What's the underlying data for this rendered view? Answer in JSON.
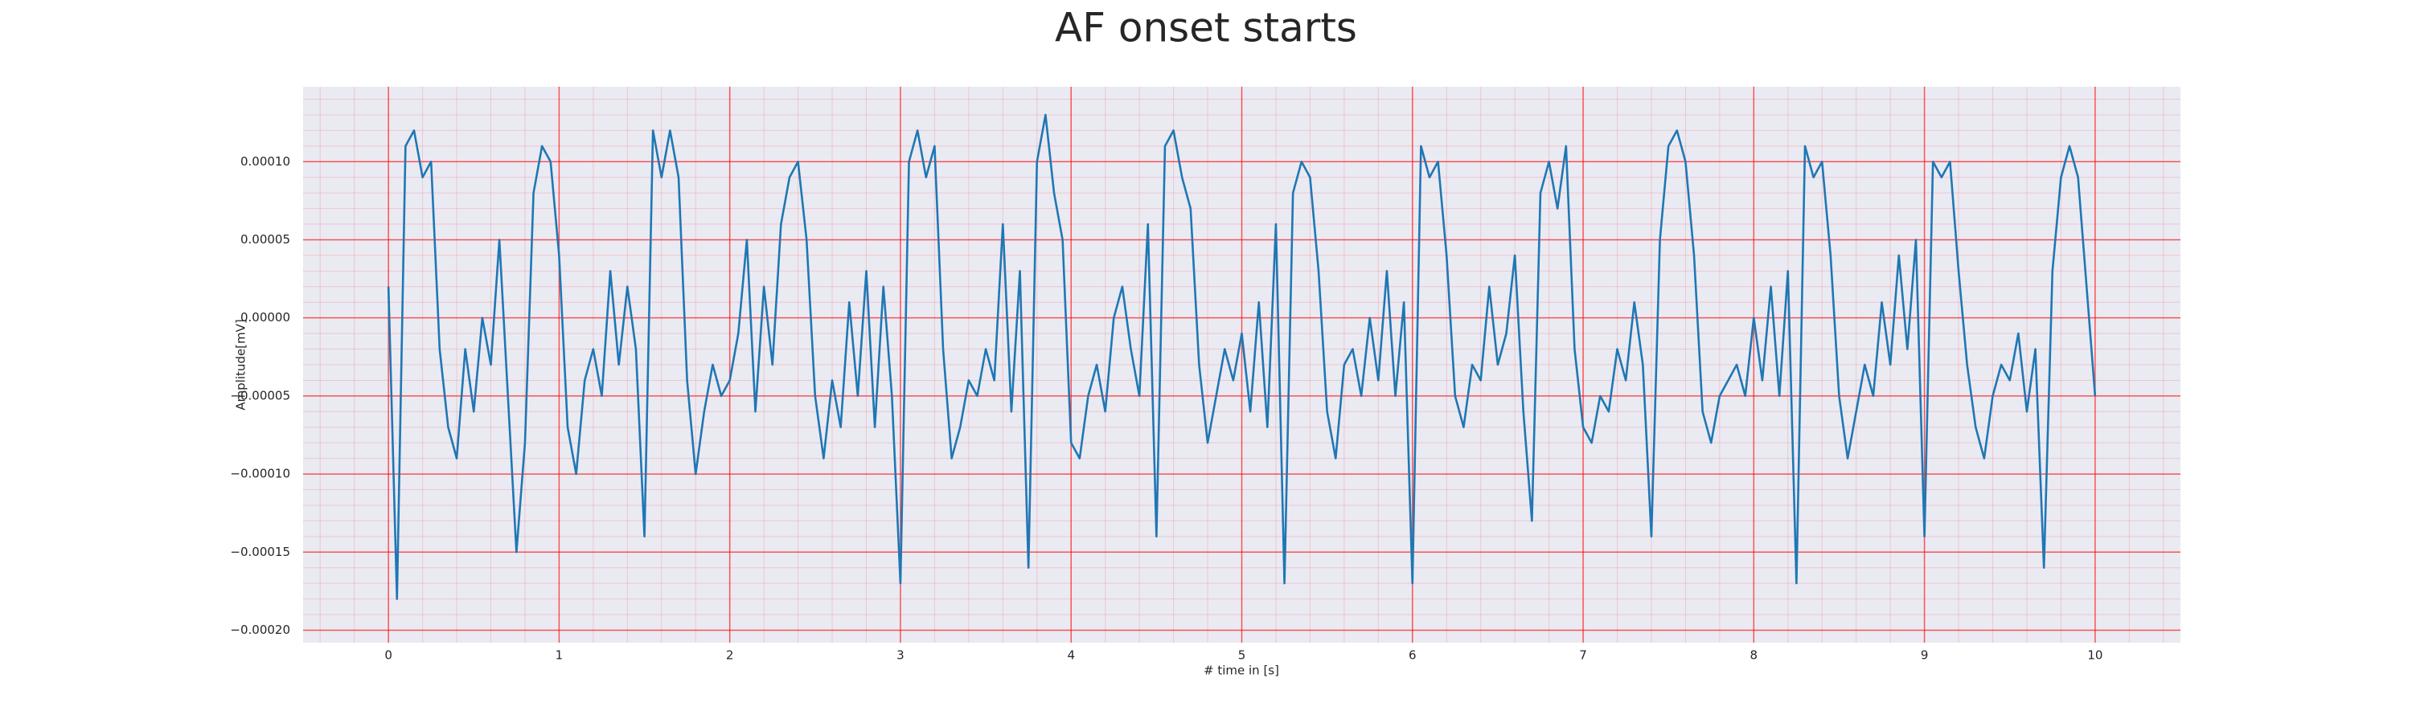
{
  "chart_data": {
    "type": "line",
    "title": "AF onset starts",
    "xlabel": "# time in [s]",
    "ylabel": "Amplitude[mV]",
    "color": "#1f77b4",
    "background": "#eaeaf2",
    "grid_color": "#ff0000",
    "grid": true,
    "minor_grid": true,
    "xlim": [
      -0.5,
      10.5
    ],
    "ylim": [
      -0.000208,
      0.000148
    ],
    "xticks": [
      0,
      1,
      2,
      3,
      4,
      5,
      6,
      7,
      8,
      9,
      10
    ],
    "yticks": [
      {
        "value": -0.0002,
        "label": "−0.00020"
      },
      {
        "value": -0.00015,
        "label": "−0.00015"
      },
      {
        "value": -0.0001,
        "label": "−0.00010"
      },
      {
        "value": -5e-05,
        "label": "−0.00005"
      },
      {
        "value": 0,
        "label": "0.00000"
      },
      {
        "value": 5e-05,
        "label": "0.00005"
      },
      {
        "value": 0.0001,
        "label": "0.00010"
      }
    ],
    "x": [
      0,
      0.05,
      0.1,
      0.15,
      0.2,
      0.25,
      0.3,
      0.35,
      0.4,
      0.45,
      0.5,
      0.55,
      0.6,
      0.65,
      0.7,
      0.75,
      0.8,
      0.85,
      0.9,
      0.95,
      1,
      1.05,
      1.1,
      1.15,
      1.2,
      1.25,
      1.3,
      1.35,
      1.4,
      1.45,
      1.5,
      1.55,
      1.6,
      1.65,
      1.7,
      1.75,
      1.8,
      1.85,
      1.9,
      1.95,
      2,
      2.05,
      2.1,
      2.15,
      2.2,
      2.25,
      2.3,
      2.35,
      2.4,
      2.45,
      2.5,
      2.55,
      2.6,
      2.65,
      2.7,
      2.75,
      2.8,
      2.85,
      2.9,
      2.95,
      3,
      3.05,
      3.1,
      3.15,
      3.2,
      3.25,
      3.3,
      3.35,
      3.4,
      3.45,
      3.5,
      3.55,
      3.6,
      3.65,
      3.7,
      3.75,
      3.8,
      3.85,
      3.9,
      3.95,
      4,
      4.05,
      4.1,
      4.15,
      4.2,
      4.25,
      4.3,
      4.35,
      4.4,
      4.45,
      4.5,
      4.55,
      4.6,
      4.65,
      4.7,
      4.75,
      4.8,
      4.85,
      4.9,
      4.95,
      5,
      5.05,
      5.1,
      5.15,
      5.2,
      5.25,
      5.3,
      5.35,
      5.4,
      5.45,
      5.5,
      5.55,
      5.6,
      5.65,
      5.7,
      5.75,
      5.8,
      5.85,
      5.9,
      5.95,
      6,
      6.05,
      6.1,
      6.15,
      6.2,
      6.25,
      6.3,
      6.35,
      6.4,
      6.45,
      6.5,
      6.55,
      6.6,
      6.65,
      6.7,
      6.75,
      6.8,
      6.85,
      6.9,
      6.95,
      7,
      7.05,
      7.1,
      7.15,
      7.2,
      7.25,
      7.3,
      7.35,
      7.4,
      7.45,
      7.5,
      7.55,
      7.6,
      7.65,
      7.7,
      7.75,
      7.8,
      7.85,
      7.9,
      7.95,
      8,
      8.05,
      8.1,
      8.15,
      8.2,
      8.25,
      8.3,
      8.35,
      8.4,
      8.45,
      8.5,
      8.55,
      8.6,
      8.65,
      8.7,
      8.75,
      8.8,
      8.85,
      8.9,
      8.95,
      9,
      9.05,
      9.1,
      9.15,
      9.2,
      9.25,
      9.3,
      9.35,
      9.4,
      9.45,
      9.5,
      9.55,
      9.6,
      9.65,
      9.7,
      9.75,
      9.8,
      9.85,
      9.9,
      9.95,
      10
    ],
    "values": [
      2e-05,
      -0.00018,
      0.00011,
      0.00012,
      9e-05,
      0.0001,
      -2e-05,
      -7e-05,
      -9e-05,
      -2e-05,
      -6e-05,
      0,
      -3e-05,
      5e-05,
      -5e-05,
      -0.00015,
      -8e-05,
      8e-05,
      0.00011,
      0.0001,
      4e-05,
      -7e-05,
      -0.0001,
      -4e-05,
      -2e-05,
      -5e-05,
      3e-05,
      -3e-05,
      2e-05,
      -2e-05,
      -0.00014,
      0.00012,
      9e-05,
      0.00012,
      9e-05,
      -4e-05,
      -0.0001,
      -6e-05,
      -3e-05,
      -5e-05,
      -4e-05,
      -1e-05,
      5e-05,
      -6e-05,
      2e-05,
      -3e-05,
      6e-05,
      9e-05,
      0.0001,
      5e-05,
      -5e-05,
      -9e-05,
      -4e-05,
      -7e-05,
      1e-05,
      -5e-05,
      3e-05,
      -7e-05,
      2e-05,
      -5e-05,
      -0.00017,
      0.0001,
      0.00012,
      9e-05,
      0.00011,
      -2e-05,
      -9e-05,
      -7e-05,
      -4e-05,
      -5e-05,
      -2e-05,
      -4e-05,
      6e-05,
      -6e-05,
      3e-05,
      -0.00016,
      0.0001,
      0.00013,
      8e-05,
      5e-05,
      -8e-05,
      -9e-05,
      -5e-05,
      -3e-05,
      -6e-05,
      0,
      2e-05,
      -2e-05,
      -5e-05,
      6e-05,
      -0.00014,
      0.00011,
      0.00012,
      9e-05,
      7e-05,
      -3e-05,
      -8e-05,
      -5e-05,
      -2e-05,
      -4e-05,
      -1e-05,
      -6e-05,
      1e-05,
      -7e-05,
      6e-05,
      -0.00017,
      8e-05,
      0.0001,
      9e-05,
      3e-05,
      -6e-05,
      -9e-05,
      -3e-05,
      -2e-05,
      -5e-05,
      0,
      -4e-05,
      3e-05,
      -5e-05,
      1e-05,
      -0.00017,
      0.00011,
      9e-05,
      0.0001,
      4e-05,
      -5e-05,
      -7e-05,
      -3e-05,
      -4e-05,
      2e-05,
      -3e-05,
      -1e-05,
      4e-05,
      -6e-05,
      -0.00013,
      8e-05,
      0.0001,
      7e-05,
      0.00011,
      -2e-05,
      -7e-05,
      -8e-05,
      -5e-05,
      -6e-05,
      -2e-05,
      -4e-05,
      1e-05,
      -3e-05,
      -0.00014,
      5e-05,
      0.00011,
      0.00012,
      0.0001,
      4e-05,
      -6e-05,
      -8e-05,
      -5e-05,
      -4e-05,
      -3e-05,
      -5e-05,
      0,
      -4e-05,
      2e-05,
      -5e-05,
      3e-05,
      -0.00017,
      0.00011,
      9e-05,
      0.0001,
      4e-05,
      -5e-05,
      -9e-05,
      -6e-05,
      -3e-05,
      -5e-05,
      1e-05,
      -3e-05,
      4e-05,
      -2e-05,
      5e-05,
      -0.00014,
      0.0001,
      9e-05,
      0.0001,
      3e-05,
      -3e-05,
      -7e-05,
      -9e-05,
      -5e-05,
      -3e-05,
      -4e-05,
      -1e-05,
      -6e-05,
      -2e-05,
      -0.00016,
      3e-05,
      9e-05,
      0.00011,
      9e-05,
      2e-05,
      -5e-05
    ]
  }
}
